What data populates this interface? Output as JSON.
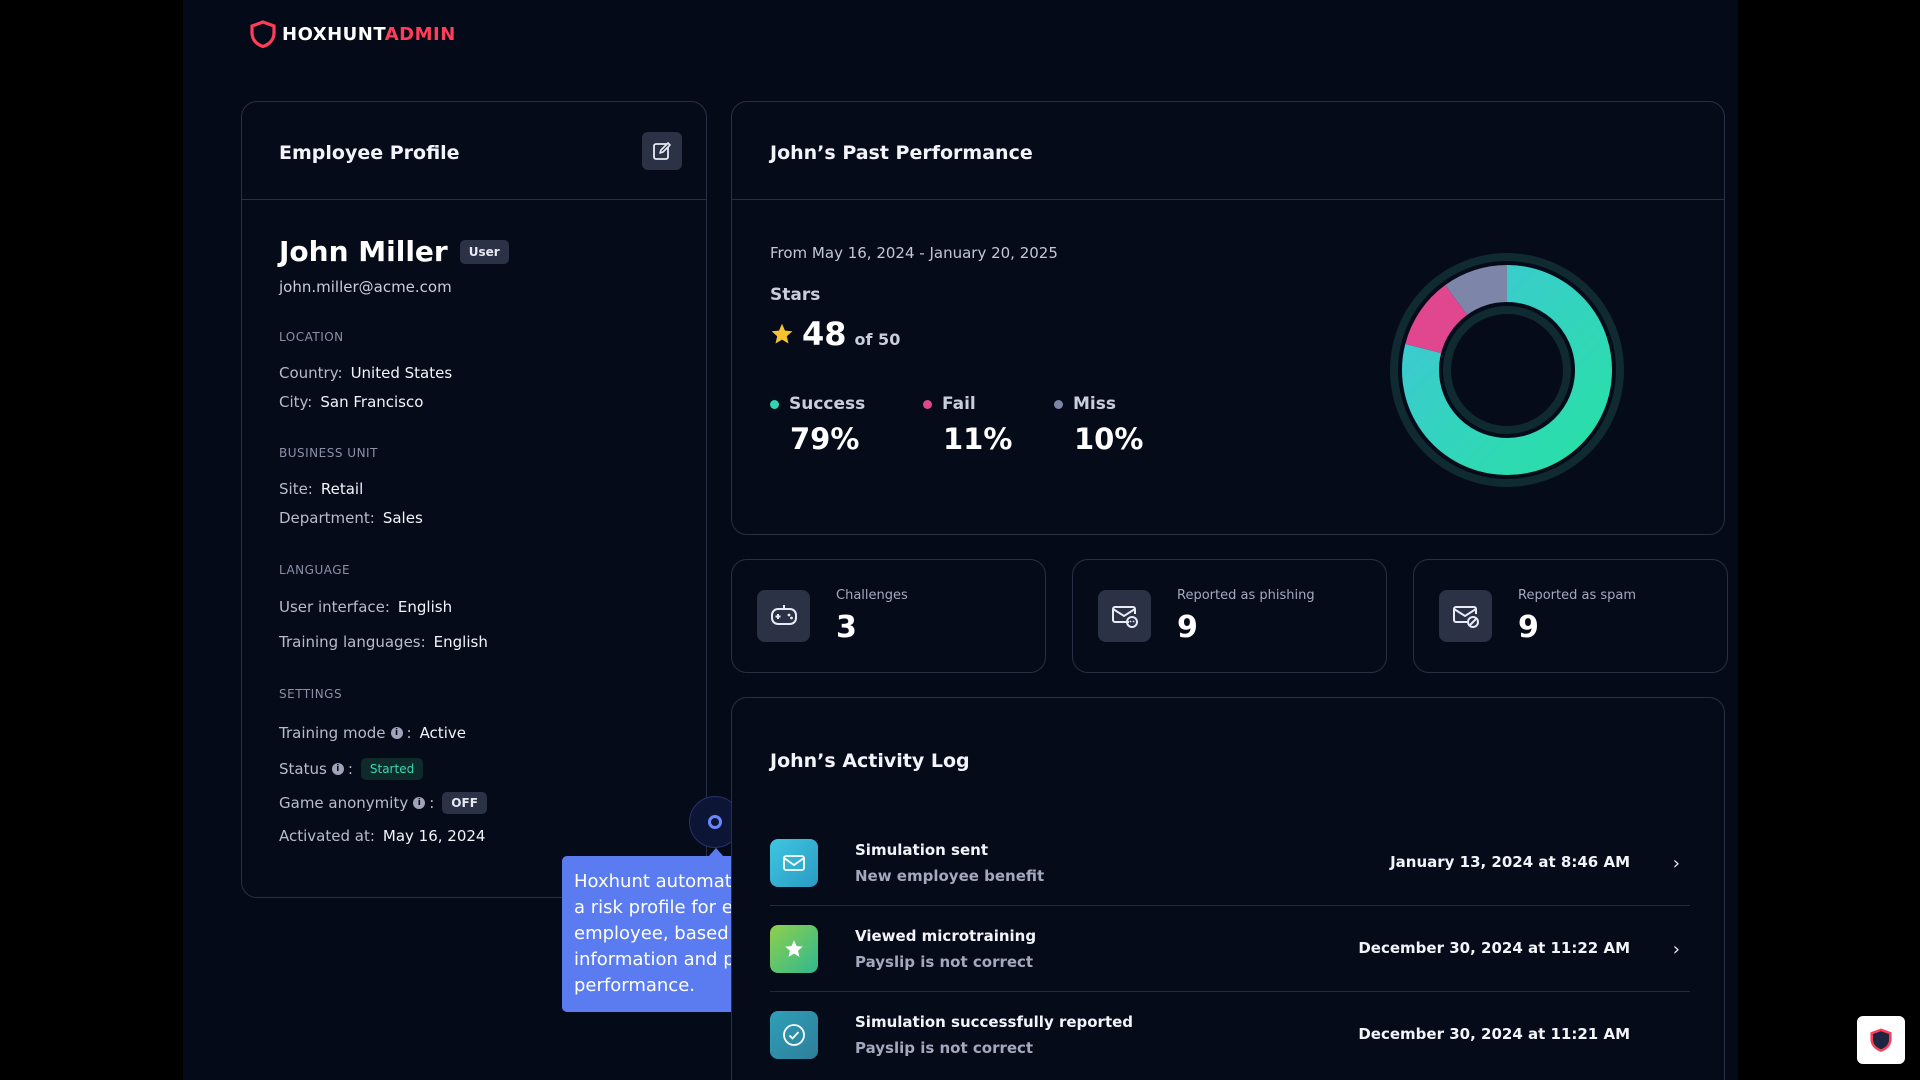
{
  "brand": {
    "part1": "HOXHUNT",
    "part2": "ADMIN",
    "accent": "#ff3d5a"
  },
  "profile": {
    "title": "Employee Profile",
    "name": "John Miller",
    "role": "User",
    "email": "john.miller@acme.com",
    "location": {
      "label": "LOCATION",
      "country_label": "Country:",
      "country": "United States",
      "city_label": "City:",
      "city": "San Francisco"
    },
    "business_unit": {
      "label": "BUSINESS UNIT",
      "site_label": "Site:",
      "site": "Retail",
      "department_label": "Department:",
      "department": "Sales"
    },
    "language": {
      "label": "LANGUAGE",
      "ui_label": "User interface:",
      "ui": "English",
      "training_label": "Training languages:",
      "training": "English"
    },
    "settings": {
      "label": "SETTINGS",
      "training_mode_label": "Training mode",
      "training_mode": "Active",
      "status_label": "Status",
      "status": "Started",
      "game_anonymity_label": "Game anonymity",
      "game_anonymity": "OFF",
      "activated_label": "Activated at:",
      "activated": "May 16, 2024"
    }
  },
  "tooltip": {
    "text": "Hoxhunt automatically creates a risk profile for every employee, based on employee information and past training performance."
  },
  "performance": {
    "title": "John’s Past Performance",
    "range": "From May 16, 2024 - January 20, 2025",
    "stars_label": "Stars",
    "stars_value": "48",
    "stars_of": "of 50",
    "legend": [
      {
        "name": "Success",
        "value": "79%",
        "color": "#2fd6b4"
      },
      {
        "name": "Fail",
        "value": "11%",
        "color": "#e0478f"
      },
      {
        "name": "Miss",
        "value": "10%",
        "color": "#7d86a8"
      }
    ],
    "donut": {
      "success": 79,
      "fail": 11,
      "miss": 10
    }
  },
  "stats": [
    {
      "label": "Challenges",
      "value": "3",
      "icon": "gamepad-icon"
    },
    {
      "label": "Reported as phishing",
      "value": "9",
      "icon": "mail-phishing-icon"
    },
    {
      "label": "Reported as spam",
      "value": "9",
      "icon": "mail-spam-icon"
    }
  ],
  "activity": {
    "title": "John’s Activity Log",
    "items": [
      {
        "title": "Simulation sent",
        "subtitle": "New employee benefit",
        "date": "January 13, 2024 at 8:46 AM",
        "icon": "mail-icon",
        "color": "#3fb0d6"
      },
      {
        "title": "Viewed microtraining",
        "subtitle": "Payslip is not correct",
        "date": "December 30, 2024 at 11:22 AM",
        "icon": "star-icon",
        "color": "#4cc58a"
      },
      {
        "title": "Simulation successfully reported",
        "subtitle": "Payslip is not correct",
        "date": "December 30, 2024 at 11:21 AM",
        "icon": "check-icon",
        "color": "#2f8fa8"
      }
    ]
  }
}
